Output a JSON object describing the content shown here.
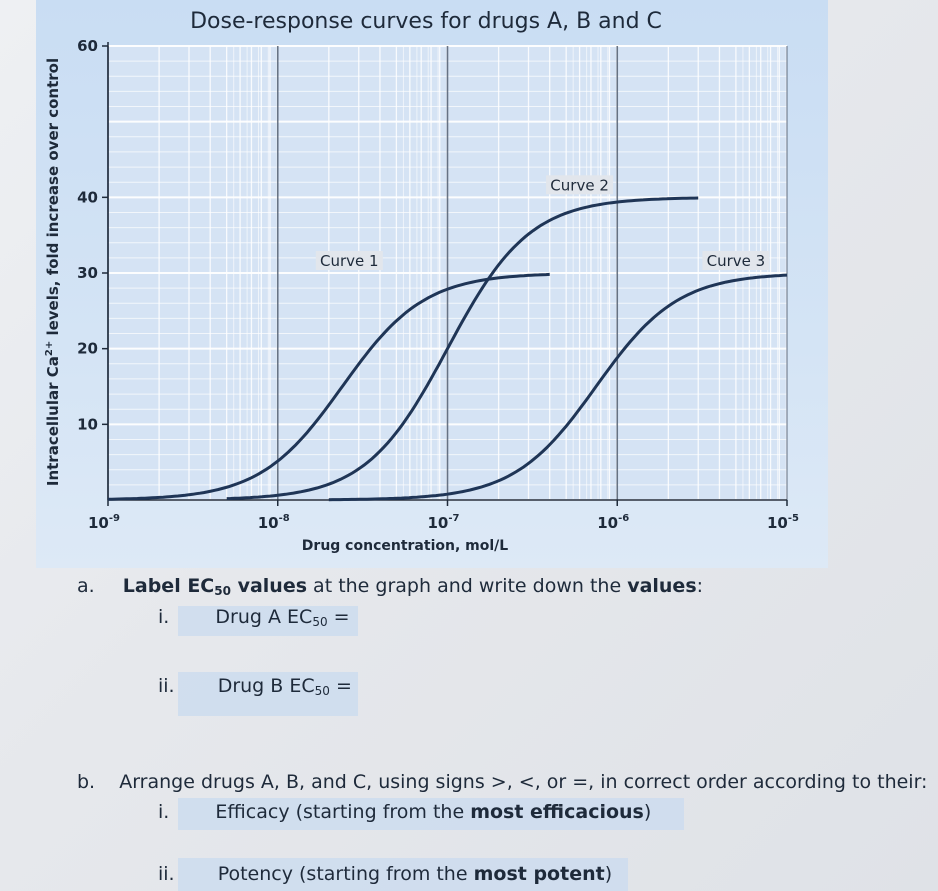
{
  "chart_data": {
    "type": "line",
    "title": "Dose-response curves for drugs A, B and C",
    "xlabel": "Drug concentration, mol/L",
    "ylabel": "Intracellular Ca2+ levels, fold increase over control",
    "xscale": "log",
    "xlim": [
      1e-09,
      1e-05
    ],
    "ylim": [
      0,
      60
    ],
    "y_ticks": [
      10,
      20,
      30,
      40,
      60
    ],
    "x_ticks": [
      {
        "base": "10",
        "exp": "-9"
      },
      {
        "base": "10",
        "exp": "-8"
      },
      {
        "base": "10",
        "exp": "-7"
      },
      {
        "base": "10",
        "exp": "-6"
      },
      {
        "base": "10",
        "exp": "-5"
      }
    ],
    "grid": true,
    "series": [
      {
        "name": "Curve 1",
        "emax": 30,
        "ec50": 2.4e-08,
        "x_start": 1e-09,
        "x_end": 4e-07,
        "x": [
          1e-09,
          5e-09,
          1e-08,
          2.4e-08,
          5e-08,
          1e-07,
          4e-07
        ],
        "y": [
          0.3,
          2.5,
          7,
          15,
          24,
          28.5,
          30
        ]
      },
      {
        "name": "Curve 2",
        "emax": 40,
        "ec50": 1e-07,
        "x_start": 5e-09,
        "x_end": 3e-06,
        "x": [
          5e-09,
          1e-08,
          5e-08,
          1e-07,
          2e-07,
          5e-07,
          3e-06
        ],
        "y": [
          0.3,
          0.8,
          7,
          20,
          31,
          38.5,
          40
        ]
      },
      {
        "name": "Curve 3",
        "emax": 30,
        "ec50": 7.5e-07,
        "x_start": 2e-08,
        "x_end": 1e-05,
        "x": [
          2e-08,
          1e-07,
          3e-07,
          7.5e-07,
          1.5e-06,
          4e-06,
          1e-05
        ],
        "y": [
          0.2,
          1.5,
          5.5,
          15,
          23,
          28.5,
          30
        ]
      }
    ],
    "color": "#1f3556"
  },
  "questions": {
    "a": {
      "marker": "a.",
      "text_pre": "Label EC",
      "text_sub": "50",
      "text_mid": " values",
      "text_post": " at the graph and write down the ",
      "text_values": "values",
      "text_end": ":",
      "items": [
        {
          "marker": "i.",
          "pre": "Drug A EC",
          "sub": "50",
          "post": " ="
        },
        {
          "marker": "ii.",
          "pre": "Drug B EC",
          "sub": "50",
          "post": " ="
        }
      ]
    },
    "b": {
      "marker": "b.",
      "text": "Arrange drugs A, B, and C, using signs >, <, or =, in correct order according to their:",
      "items": [
        {
          "marker": "i.",
          "pre": "Efficacy (starting from the ",
          "bold": "most efficacious",
          "post": ")"
        },
        {
          "marker": "ii.",
          "pre": "Potency (starting from the ",
          "bold": "most potent",
          "post": ")"
        }
      ]
    }
  }
}
